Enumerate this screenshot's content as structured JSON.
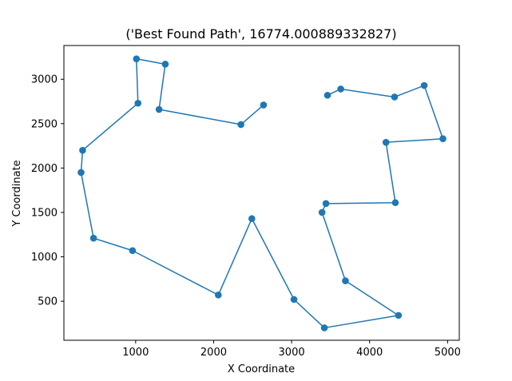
{
  "chart_data": {
    "type": "line",
    "title": "('Best Found Path', 16774.000889332827)",
    "xlabel": "X Coordinate",
    "ylabel": "Y Coordinate",
    "xlim": [
      80,
      5150
    ],
    "ylim": [
      60,
      3380
    ],
    "xticks": [
      1000,
      2000,
      3000,
      4000,
      5000
    ],
    "xtick_labels": [
      "1000",
      "2000",
      "3000",
      "4000",
      "5000"
    ],
    "yticks": [
      500,
      1000,
      1500,
      2000,
      2500,
      3000
    ],
    "ytick_labels": [
      "500",
      "1000",
      "1500",
      "2000",
      "2500",
      "3000"
    ],
    "grid": false,
    "series": [
      {
        "color": "#1f77b4",
        "marker": "circle",
        "x": [
          2640,
          2350,
          1300,
          1380,
          1010,
          1030,
          320,
          300,
          460,
          960,
          2060,
          2490,
          3030,
          3420,
          4370,
          3690,
          3390,
          3440,
          4330,
          4210,
          4940,
          4700,
          4320,
          3630,
          3460
        ],
        "y": [
          2710,
          2490,
          2660,
          3170,
          3230,
          2730,
          2200,
          1950,
          1210,
          1070,
          570,
          1430,
          520,
          200,
          340,
          730,
          1500,
          1600,
          1610,
          2290,
          2330,
          2930,
          2800,
          2890,
          2820
        ]
      }
    ]
  }
}
